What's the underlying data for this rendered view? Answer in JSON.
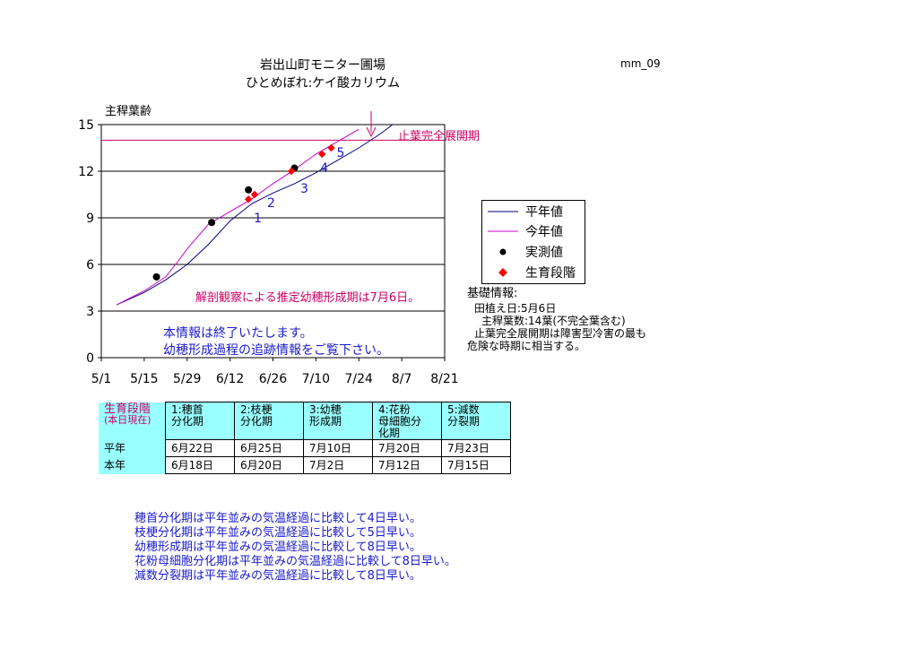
{
  "header": {
    "title_line1": "岩出山町モニター圃場",
    "title_line2": "ひとめぼれ:ケイ酸カリウム",
    "code": "mm_09"
  },
  "chart_data": {
    "type": "line",
    "ylabel": "主稈葉齢",
    "ylim": [
      0,
      15
    ],
    "yticks": [
      0,
      3,
      6,
      9,
      12,
      15
    ],
    "xlim": [
      "5/1",
      "8/21"
    ],
    "xticks": [
      "5/1",
      "5/15",
      "5/29",
      "6/12",
      "6/26",
      "7/10",
      "7/24",
      "8/7",
      "8/21"
    ],
    "grid": "horizontal",
    "legend_position": "right",
    "final_leaf_line": {
      "value": 14,
      "label": "止葉完全展開期"
    },
    "series": [
      {
        "name": "平年値",
        "type": "line",
        "color": "#000080",
        "x": [
          "5/6",
          "5/15",
          "5/22",
          "5/29",
          "6/5",
          "6/12",
          "6/19",
          "6/26",
          "7/3",
          "7/10",
          "7/17",
          "7/24",
          "7/31",
          "8/4"
        ],
        "y": [
          3.4,
          4.2,
          5.0,
          6.0,
          7.3,
          8.8,
          9.9,
          10.6,
          11.2,
          11.9,
          12.7,
          13.5,
          14.4,
          15.0
        ]
      },
      {
        "name": "今年値",
        "type": "line",
        "color": "#cc00cc",
        "x": [
          "5/6",
          "5/15",
          "5/22",
          "5/26",
          "5/29",
          "6/5",
          "6/12",
          "6/19",
          "6/26",
          "7/3",
          "7/10",
          "7/17",
          "7/24"
        ],
        "y": [
          3.4,
          4.3,
          5.2,
          6.2,
          7.0,
          8.6,
          9.4,
          10.2,
          11.2,
          12.1,
          13.1,
          13.9,
          14.7
        ]
      },
      {
        "name": "実測値",
        "type": "scatter",
        "color": "#000000",
        "x": [
          "5/19",
          "6/6",
          "6/18",
          "7/3"
        ],
        "y": [
          5.2,
          8.7,
          10.8,
          12.2
        ]
      },
      {
        "name": "生育段階",
        "type": "scatter",
        "color": "#ff0000",
        "x": [
          "6/18",
          "6/20",
          "7/2",
          "7/12",
          "7/15"
        ],
        "y": [
          10.2,
          10.5,
          12.0,
          13.1,
          13.5
        ],
        "labels": [
          "1",
          "2",
          "3",
          "4",
          "5"
        ]
      }
    ],
    "annotation_panicle": "解剖観察による推定幼穂形成期は7月6日。",
    "annotation_end_line1": "本情報は終了いたします。",
    "annotation_end_line2": "幼穂形成過程の追跡情報をご覧下さい。"
  },
  "info": {
    "heading": "基礎情報:",
    "planting": "田植え日:5月6日",
    "leaf_count": "主稈葉数:14葉(不完全葉含む)",
    "note_line1": "止葉完全展開期は障害型冷害の最も",
    "note_line2": "危険な時期に相当する。"
  },
  "stage_table": {
    "corner_line1": "生育段階",
    "corner_line2": "(本日現在)",
    "stages": [
      {
        "line1": "1:穂首",
        "line2": "分化期",
        "line3": ""
      },
      {
        "line1": "2:枝梗",
        "line2": "分化期",
        "line3": ""
      },
      {
        "line1": "3:幼穂",
        "line2": "形成期",
        "line3": ""
      },
      {
        "line1": "4:花粉",
        "line2": "母細胞分",
        "line3": "化期"
      },
      {
        "line1": "5:減数",
        "line2": "分裂期",
        "line3": ""
      }
    ],
    "rows": [
      {
        "label": "平年",
        "values": [
          "6月22日",
          "6月25日",
          "7月10日",
          "7月20日",
          "7月23日"
        ]
      },
      {
        "label": "本年",
        "values": [
          "6月18日",
          "6月20日",
          "7月2日",
          "7月12日",
          "7月15日"
        ]
      }
    ]
  },
  "notes": [
    "穂首分化期は平年並みの気温経過に比較して4日早い。",
    "枝梗分化期は平年並みの気温経過に比較して5日早い。",
    "幼穂形成期は平年並みの気温経過に比較して8日早い。",
    "花粉母細胞分化期は平年並みの気温経過に比較して8日早い。",
    "減数分裂期は平年並みの気温経過に比較して8日早い。"
  ]
}
